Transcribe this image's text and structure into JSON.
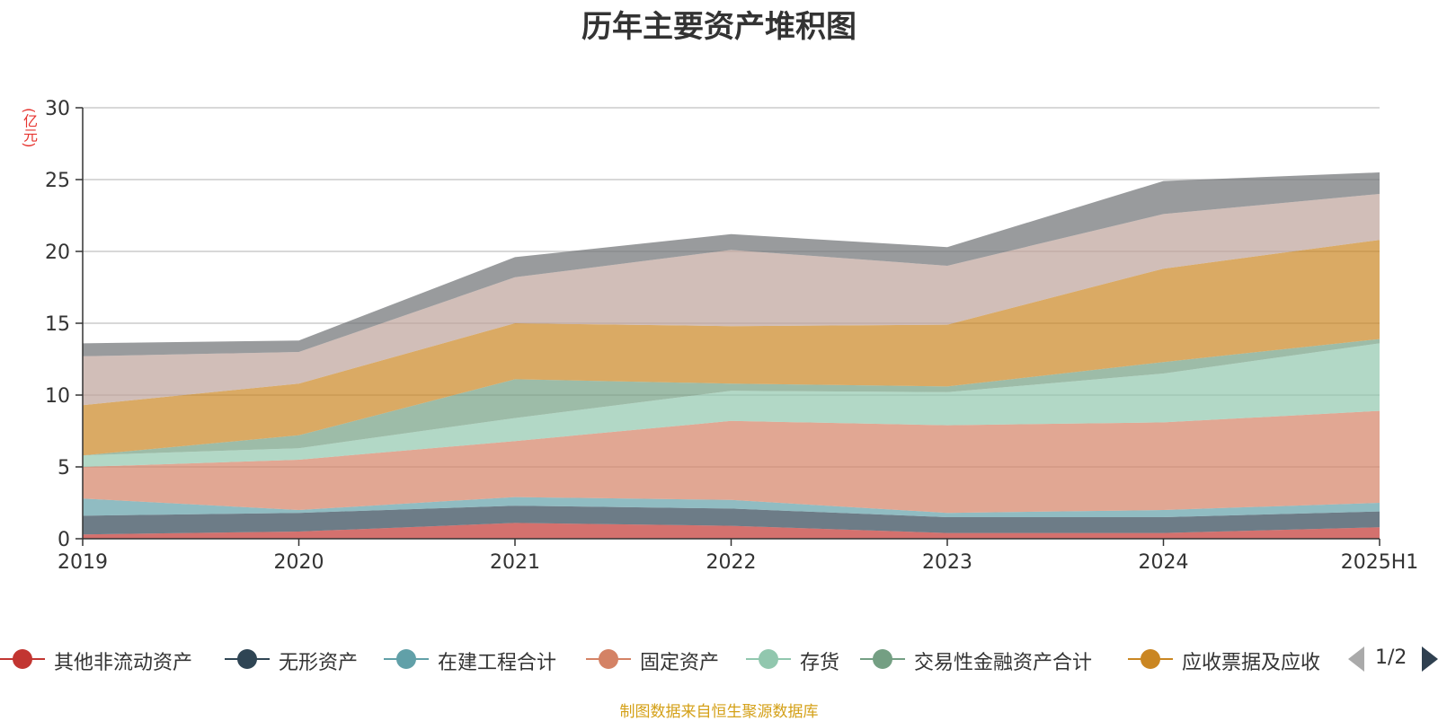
{
  "chart_data": {
    "type": "area",
    "stacked": true,
    "title": "历年主要资产堆积图",
    "unit_label": "(亿元)",
    "categories": [
      "2019",
      "2020",
      "2021",
      "2022",
      "2023",
      "2024",
      "2025H1"
    ],
    "ylim": [
      0,
      30
    ],
    "yticks": [
      0,
      5,
      10,
      15,
      20,
      25,
      30
    ],
    "grid": true,
    "series": [
      {
        "name": "其他非流动资产",
        "color": "#c23531",
        "values": [
          0.3,
          0.5,
          1.1,
          0.9,
          0.4,
          0.4,
          0.8
        ]
      },
      {
        "name": "无形资产",
        "color": "#2f4554",
        "values": [
          1.3,
          1.3,
          1.2,
          1.2,
          1.1,
          1.1,
          1.1
        ]
      },
      {
        "name": "在建工程合计",
        "color": "#61a0a8",
        "values": [
          1.2,
          0.2,
          0.6,
          0.6,
          0.3,
          0.5,
          0.6
        ]
      },
      {
        "name": "固定资产",
        "color": "#d48265",
        "values": [
          2.2,
          3.5,
          3.9,
          5.5,
          6.1,
          6.1,
          6.4
        ]
      },
      {
        "name": "存货",
        "color": "#91c7ae",
        "values": [
          0.8,
          0.8,
          1.6,
          2.1,
          2.3,
          3.4,
          4.7
        ]
      },
      {
        "name": "交易性金融资产合计",
        "color": "#749f83",
        "values": [
          0.0,
          0.9,
          2.7,
          0.5,
          0.4,
          0.8,
          0.3
        ]
      },
      {
        "name": "应收票据及应收",
        "color": "#ca8622",
        "values": [
          3.5,
          3.6,
          3.9,
          4.0,
          4.3,
          6.5,
          6.9
        ]
      },
      {
        "name": "",
        "color": "#bda29a",
        "values": [
          3.4,
          2.2,
          3.2,
          5.3,
          4.1,
          3.8,
          3.2
        ]
      },
      {
        "name": "",
        "color": "#6e7074",
        "values": [
          0.9,
          0.8,
          1.4,
          1.1,
          1.3,
          2.3,
          1.5
        ]
      }
    ]
  },
  "legend": {
    "page_indicator": "1/2"
  },
  "source_note": "制图数据来自恒生聚源数据库"
}
